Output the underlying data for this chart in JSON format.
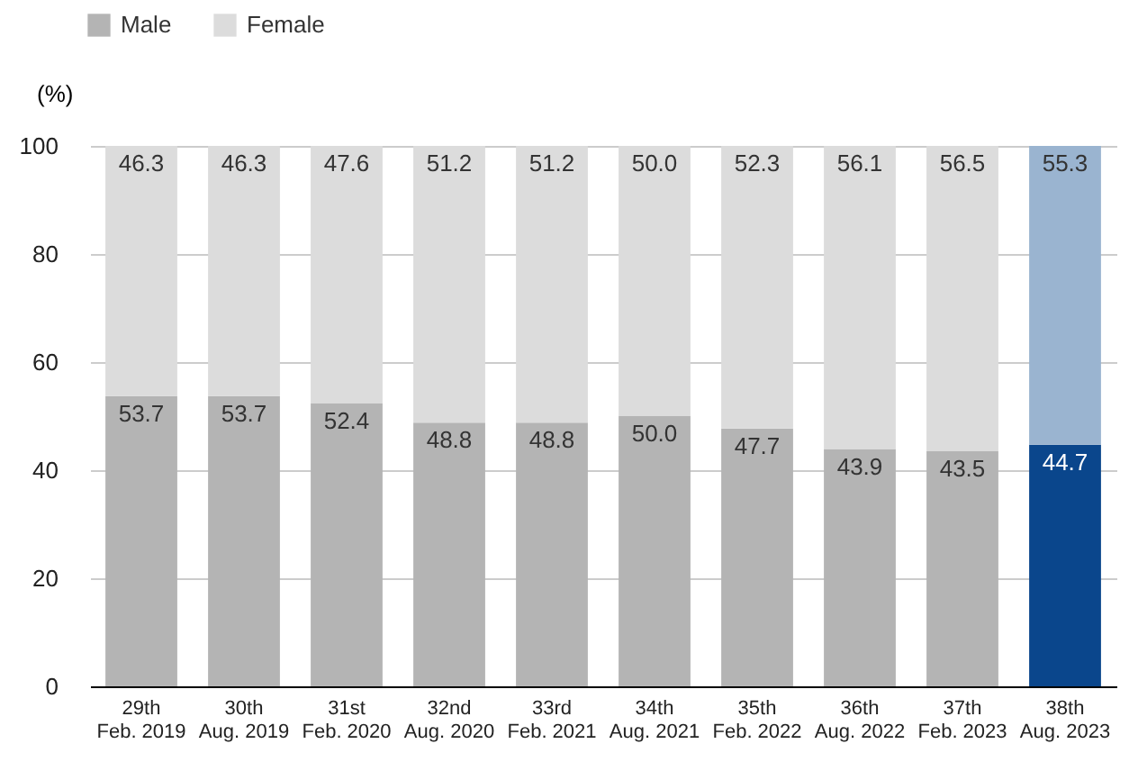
{
  "chart_data": {
    "type": "bar",
    "stacked": true,
    "ylabel": "(%)",
    "categories": [
      "29th\nFeb. 2019",
      "30th\nAug. 2019",
      "31st\nFeb. 2020",
      "32nd\nAug. 2020",
      "33rd\nFeb. 2021",
      "34th\nAug. 2021",
      "35th\nFeb. 2022",
      "36th\nAug. 2022",
      "37th\nFeb. 2023",
      "38th\nAug. 2023"
    ],
    "series": [
      {
        "name": "Male",
        "color": "#b4b4b4",
        "colors": [
          "#b4b4b4",
          "#b4b4b4",
          "#b4b4b4",
          "#b4b4b4",
          "#b4b4b4",
          "#b4b4b4",
          "#b4b4b4",
          "#b4b4b4",
          "#b4b4b4",
          "#0a468c"
        ],
        "values": [
          53.7,
          53.7,
          52.4,
          48.8,
          48.8,
          50.0,
          47.7,
          43.9,
          43.5,
          44.7
        ],
        "value_labels": [
          "53.7",
          "53.7",
          "52.4",
          "48.8",
          "48.8",
          "50.0",
          "47.7",
          "43.9",
          "43.5",
          "44.7"
        ]
      },
      {
        "name": "Female",
        "color": "#dcdcdc",
        "colors": [
          "#dcdcdc",
          "#dcdcdc",
          "#dcdcdc",
          "#dcdcdc",
          "#dcdcdc",
          "#dcdcdc",
          "#dcdcdc",
          "#dcdcdc",
          "#dcdcdc",
          "#9ab4d0"
        ],
        "values": [
          46.3,
          46.3,
          47.6,
          51.2,
          51.2,
          50.0,
          52.3,
          56.1,
          56.5,
          55.3
        ],
        "value_labels": [
          "46.3",
          "46.3",
          "47.6",
          "51.2",
          "51.2",
          "50.0",
          "52.3",
          "56.1",
          "56.5",
          "55.3"
        ]
      }
    ],
    "ylim": [
      0,
      100
    ],
    "yticks": [
      0,
      20,
      40,
      60,
      80,
      100
    ],
    "grid": "y",
    "legend": "top left"
  }
}
